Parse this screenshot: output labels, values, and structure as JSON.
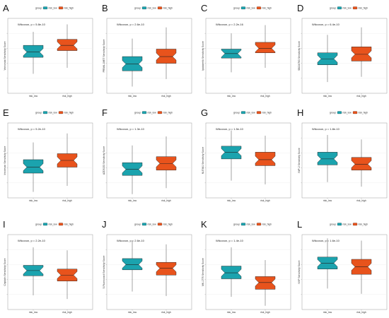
{
  "legend": {
    "title": "group",
    "labels": [
      "risk_low",
      "risk_high"
    ]
  },
  "colors": {
    "risk_low": "#1ba3ae",
    "risk_high": "#e8531c",
    "frame": "#9a9a9a",
    "grid": "#ececec",
    "whisker": "#333333"
  },
  "chart_data": [
    {
      "panel": "A",
      "type": "box",
      "ylabel": "Vorinostat Sensitivity Score",
      "pvalue_text": "Wilcoxon, p = 5.8e-10",
      "categories": [
        "risk_low",
        "risk_high"
      ],
      "ylim": [
        0,
        10
      ],
      "boxes": [
        {
          "min": 2.6,
          "q1": 4.8,
          "median": 5.5,
          "q3": 6.4,
          "max": 8.2
        },
        {
          "min": 3.4,
          "q1": 5.7,
          "median": 6.4,
          "q3": 7.2,
          "max": 9.2
        }
      ]
    },
    {
      "panel": "B",
      "type": "box",
      "ylabel": "PRIMA-1MET Sensitivity Score",
      "pvalue_text": "Wilcoxon, p = 2.6e-10",
      "categories": [
        "risk_low",
        "risk_high"
      ],
      "ylim": [
        0,
        10
      ],
      "boxes": [
        {
          "min": 0.9,
          "q1": 3.0,
          "median": 3.9,
          "q3": 4.9,
          "max": 7.3
        },
        {
          "min": 1.9,
          "q1": 4.0,
          "median": 4.9,
          "q3": 5.9,
          "max": 8.8
        }
      ]
    },
    {
      "panel": "C",
      "type": "box",
      "ylabel": "Ipatasertib Sensitivity Score",
      "pvalue_text": "Wilcoxon, p = 2.2e-16",
      "categories": [
        "risk_low",
        "risk_high"
      ],
      "ylim": [
        0,
        10
      ],
      "boxes": [
        {
          "min": 2.8,
          "q1": 4.7,
          "median": 5.3,
          "q3": 5.9,
          "max": 8.0
        },
        {
          "min": 3.4,
          "q1": 5.4,
          "median": 6.0,
          "q3": 6.8,
          "max": 9.1
        }
      ]
    },
    {
      "panel": "D",
      "type": "box",
      "ylabel": "SB216763 Sensitivity Score",
      "pvalue_text": "Wilcoxon, p = 6.4e-10",
      "categories": [
        "risk_low",
        "risk_high"
      ],
      "ylim": [
        0,
        10
      ],
      "boxes": [
        {
          "min": 1.5,
          "q1": 3.8,
          "median": 4.6,
          "q3": 5.4,
          "max": 7.8
        },
        {
          "min": 2.2,
          "q1": 4.3,
          "median": 5.2,
          "q3": 6.2,
          "max": 8.8
        }
      ]
    },
    {
      "panel": "E",
      "type": "box",
      "ylabel": "Irinotecan Sensitivity Score",
      "pvalue_text": "Wilcoxon, p = 5.2e-10",
      "categories": [
        "risk_low",
        "risk_high"
      ],
      "ylim": [
        0,
        10
      ],
      "boxes": [
        {
          "min": 0.8,
          "q1": 3.3,
          "median": 4.1,
          "q3": 5.1,
          "max": 7.4
        },
        {
          "min": 1.6,
          "q1": 4.1,
          "median": 5.0,
          "q3": 5.9,
          "max": 8.6
        }
      ]
    },
    {
      "panel": "F",
      "type": "box",
      "ylabel": "AZD5153 Sensitivity Score",
      "pvalue_text": "Wilcoxon, p = 1.3e-10",
      "categories": [
        "risk_low",
        "risk_high"
      ],
      "ylim": [
        0,
        10
      ],
      "boxes": [
        {
          "min": 0.5,
          "q1": 3.0,
          "median": 3.8,
          "q3": 4.7,
          "max": 7.0
        },
        {
          "min": 1.3,
          "q1": 3.7,
          "median": 4.6,
          "q3": 5.5,
          "max": 8.2
        }
      ]
    },
    {
      "panel": "G",
      "type": "box",
      "ylabel": "NU7441 Sensitivity Score",
      "pvalue_text": "Wilcoxon, p = 1.5e-10",
      "categories": [
        "risk_low",
        "risk_high"
      ],
      "ylim": [
        0,
        10
      ],
      "boxes": [
        {
          "min": 2.3,
          "q1": 5.2,
          "median": 6.1,
          "q3": 6.9,
          "max": 9.0
        },
        {
          "min": 1.8,
          "q1": 4.3,
          "median": 5.1,
          "q3": 6.1,
          "max": 8.3
        }
      ]
    },
    {
      "panel": "H",
      "type": "box",
      "ylabel": "IWP-2 Sensitivity Score",
      "pvalue_text": "Wilcoxon, p = 1.8e-10",
      "categories": [
        "risk_low",
        "risk_high"
      ],
      "ylim": [
        0,
        10
      ],
      "boxes": [
        {
          "min": 2.1,
          "q1": 4.4,
          "median": 5.2,
          "q3": 6.1,
          "max": 8.4
        },
        {
          "min": 1.5,
          "q1": 3.7,
          "median": 4.5,
          "q3": 5.4,
          "max": 7.8
        }
      ]
    },
    {
      "panel": "I",
      "type": "box",
      "ylabel": "Cisplatin Sensitivity Score",
      "pvalue_text": "Wilcoxon, p = 2.2e-10",
      "categories": [
        "risk_low",
        "risk_high"
      ],
      "ylim": [
        0,
        10
      ],
      "boxes": [
        {
          "min": 1.9,
          "q1": 4.5,
          "median": 5.2,
          "q3": 5.9,
          "max": 8.3
        },
        {
          "min": 1.4,
          "q1": 3.8,
          "median": 4.6,
          "q3": 5.4,
          "max": 7.9
        }
      ]
    },
    {
      "panel": "J",
      "type": "box",
      "ylabel": "5-Fluorouracil Sensitivity Score",
      "pvalue_text": "Wilcoxon, p = 2.6e-10",
      "categories": [
        "risk_low",
        "risk_high"
      ],
      "ylim": [
        0,
        10
      ],
      "boxes": [
        {
          "min": 2.4,
          "q1": 5.3,
          "median": 6.0,
          "q3": 6.8,
          "max": 9.2
        },
        {
          "min": 1.8,
          "q1": 4.6,
          "median": 5.5,
          "q3": 6.3,
          "max": 8.7
        }
      ]
    },
    {
      "panel": "K",
      "type": "box",
      "ylabel": "MK-1775 Sensitivity Score",
      "pvalue_text": "Wilcoxon, p = 1.4e-10",
      "categories": [
        "risk_low",
        "risk_high"
      ],
      "ylim": [
        0,
        10
      ],
      "boxes": [
        {
          "min": 1.7,
          "q1": 4.1,
          "median": 4.9,
          "q3": 5.8,
          "max": 8.3
        },
        {
          "min": 0.5,
          "q1": 2.7,
          "median": 3.6,
          "q3": 4.4,
          "max": 6.6
        }
      ]
    },
    {
      "panel": "L",
      "type": "box",
      "ylabel": "NVP Sensitivity Score",
      "pvalue_text": "Wilcoxon, p = 1.6e-10",
      "categories": [
        "risk_low",
        "risk_high"
      ],
      "ylim": [
        0,
        10
      ],
      "boxes": [
        {
          "min": 2.8,
          "q1": 5.4,
          "median": 6.2,
          "q3": 7.0,
          "max": 9.5
        },
        {
          "min": 2.1,
          "q1": 4.7,
          "median": 5.7,
          "q3": 6.7,
          "max": 9.2
        }
      ]
    }
  ]
}
